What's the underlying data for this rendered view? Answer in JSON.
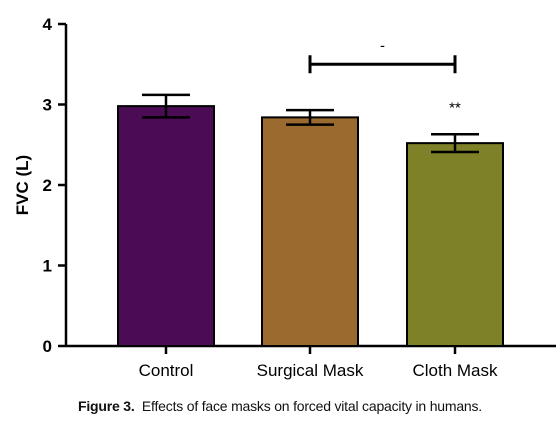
{
  "chart_data": {
    "type": "bar",
    "categories": [
      "Control",
      "Surgical Mask",
      "Cloth Mask"
    ],
    "values": [
      2.98,
      2.84,
      2.52
    ],
    "errors": [
      0.14,
      0.09,
      0.11
    ],
    "colors": [
      "#4b0b55",
      "#9b6a2e",
      "#7e8128"
    ],
    "ylabel": "FVC (L)",
    "ylim": [
      0,
      4
    ],
    "yticks": [
      "0",
      "1",
      "2",
      "3",
      "4"
    ],
    "grid": false,
    "annotations": {
      "bracket_label": "-",
      "bracket_from": "Surgical Mask",
      "bracket_to": "Cloth Mask",
      "bracket_y": 3.5,
      "significance": "**",
      "significance_over": "Cloth Mask"
    }
  },
  "caption": {
    "label": "Figure 3.",
    "text": "Effects of face masks on forced vital capacity in humans."
  }
}
